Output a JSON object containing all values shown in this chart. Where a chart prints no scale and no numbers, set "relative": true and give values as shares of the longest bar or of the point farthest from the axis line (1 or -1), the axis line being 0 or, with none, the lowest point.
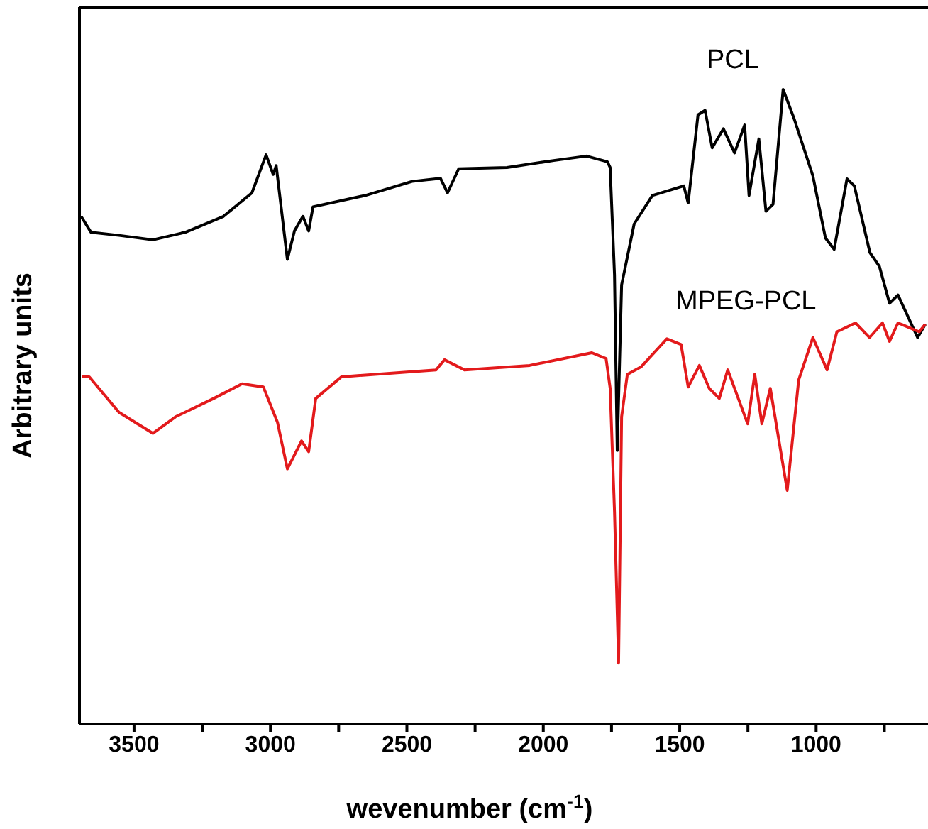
{
  "chart_data": {
    "type": "line",
    "relative": true,
    "xlabel": "wevenumber (cm$^{-1}$)",
    "ylabel": "Arbitrary units",
    "xlim": [
      3700,
      590
    ],
    "xticks": [
      3500,
      {
        "value": 3250,
        "label": null
      },
      3000,
      {
        "value": 2750,
        "label": null
      },
      2500,
      {
        "value": 2250,
        "label": null
      },
      2000,
      {
        "value": 1750,
        "label": null
      },
      1500,
      {
        "value": 1250,
        "label": null
      },
      1000,
      {
        "value": 750,
        "label": null
      }
    ],
    "legend": false,
    "marker": "none",
    "line_style": "solid",
    "series": [
      {
        "name": "PCL",
        "color": "#000000",
        "x": [
          3694,
          3658,
          3555,
          3431,
          3311,
          3172,
          3068,
          3016,
          2990,
          2979,
          2938,
          2912,
          2881,
          2860,
          2844,
          2652,
          2481,
          2377,
          2351,
          2310,
          2133,
          1962,
          1842,
          1765,
          1755,
          1739,
          1729,
          1713,
          1667,
          1600,
          1485,
          1469,
          1433,
          1407,
          1381,
          1340,
          1299,
          1262,
          1246,
          1210,
          1184,
          1158,
          1121,
          1080,
          1012,
          966,
          934,
          887,
          860,
          803,
          768,
          731,
          700,
          628,
          600
        ],
        "values": [
          0.8,
          0.775,
          0.77,
          0.763,
          0.775,
          0.8,
          0.837,
          0.897,
          0.866,
          0.88,
          0.732,
          0.777,
          0.8,
          0.777,
          0.815,
          0.833,
          0.855,
          0.86,
          0.837,
          0.875,
          0.877,
          0.888,
          0.895,
          0.886,
          0.877,
          0.708,
          0.431,
          0.692,
          0.788,
          0.833,
          0.848,
          0.821,
          0.96,
          0.967,
          0.908,
          0.938,
          0.9,
          0.944,
          0.833,
          0.922,
          0.808,
          0.819,
          1.0,
          0.953,
          0.864,
          0.766,
          0.748,
          0.859,
          0.848,
          0.743,
          0.721,
          0.663,
          0.676,
          0.609,
          0.63
        ]
      },
      {
        "name": "MPEG-PCL",
        "color": "#e31a1c",
        "x": [
          3690,
          3664,
          3555,
          3431,
          3348,
          3208,
          3104,
          3026,
          2974,
          2938,
          2886,
          2860,
          2834,
          2740,
          2393,
          2362,
          2289,
          2050,
          1822,
          1770,
          1755,
          1739,
          1724,
          1713,
          1692,
          1641,
          1547,
          1495,
          1469,
          1428,
          1392,
          1355,
          1324,
          1251,
          1225,
          1199,
          1168,
          1106,
          1064,
          1012,
          960,
          924,
          856,
          804,
          757,
          731,
          700,
          622,
          600
        ],
        "values": [
          0.547,
          0.547,
          0.491,
          0.458,
          0.484,
          0.513,
          0.536,
          0.531,
          0.475,
          0.402,
          0.446,
          0.429,
          0.513,
          0.547,
          0.558,
          0.574,
          0.558,
          0.565,
          0.585,
          0.576,
          0.529,
          0.335,
          0.096,
          0.484,
          0.551,
          0.563,
          0.607,
          0.598,
          0.531,
          0.565,
          0.529,
          0.513,
          0.558,
          0.473,
          0.551,
          0.473,
          0.529,
          0.368,
          0.542,
          0.609,
          0.558,
          0.618,
          0.632,
          0.609,
          0.632,
          0.603,
          0.632,
          0.618,
          0.63
        ]
      }
    ]
  }
}
